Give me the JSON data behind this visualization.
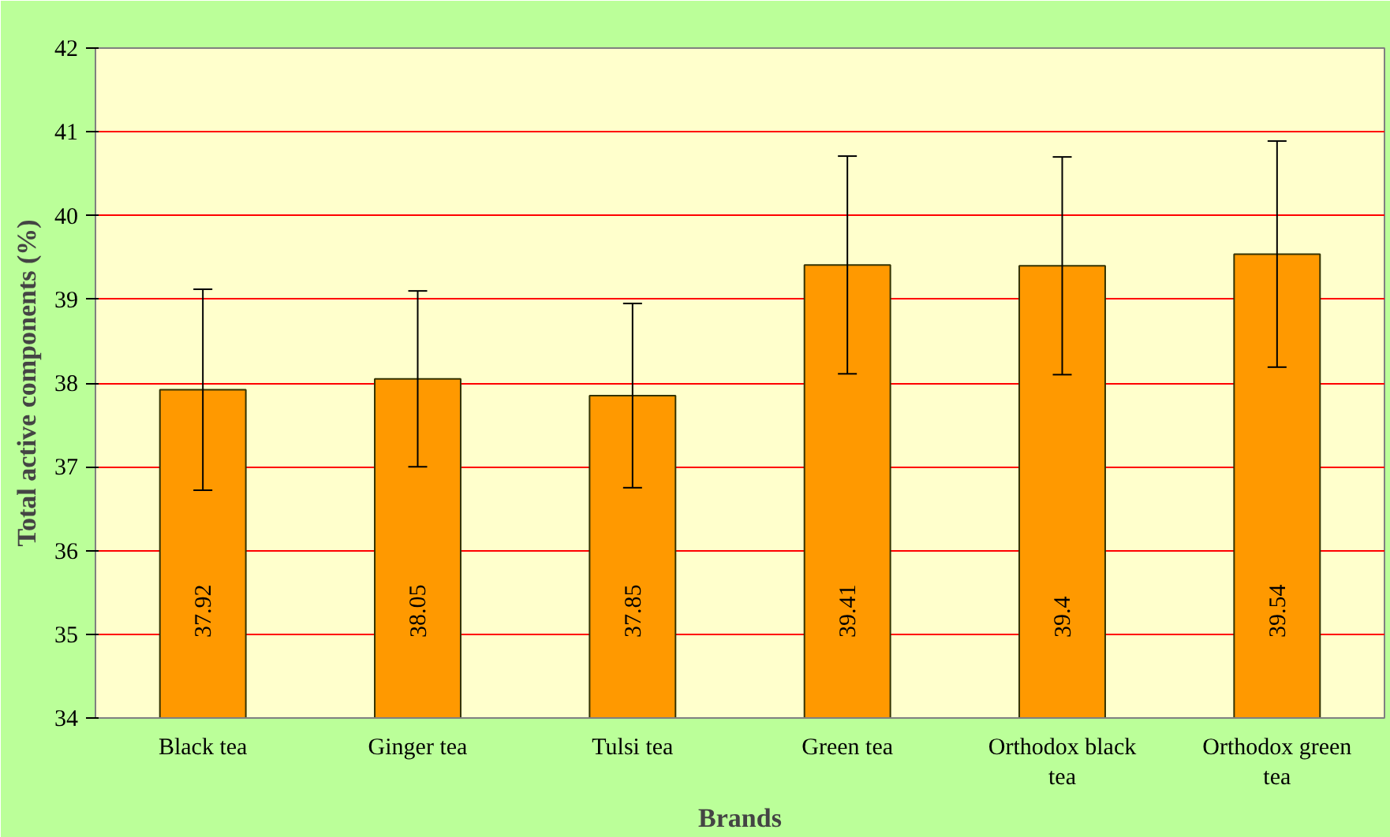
{
  "chart_data": {
    "type": "bar",
    "xlabel": "Brands",
    "ylabel": "Total active components (%)",
    "categories": [
      "Black tea",
      "Ginger tea",
      "Tulsi tea",
      "Green tea",
      "Orthodox black tea",
      "Orthodox green tea"
    ],
    "values": [
      37.92,
      38.05,
      37.85,
      39.41,
      39.4,
      39.54
    ],
    "errors": [
      1.2,
      1.05,
      1.1,
      1.3,
      1.3,
      1.35
    ],
    "color": "#ff9900",
    "data_labels": true,
    "ylim": [
      34,
      42
    ],
    "yticks": [
      34,
      35,
      36,
      37,
      38,
      39,
      40,
      41,
      42
    ],
    "grid": "y"
  }
}
